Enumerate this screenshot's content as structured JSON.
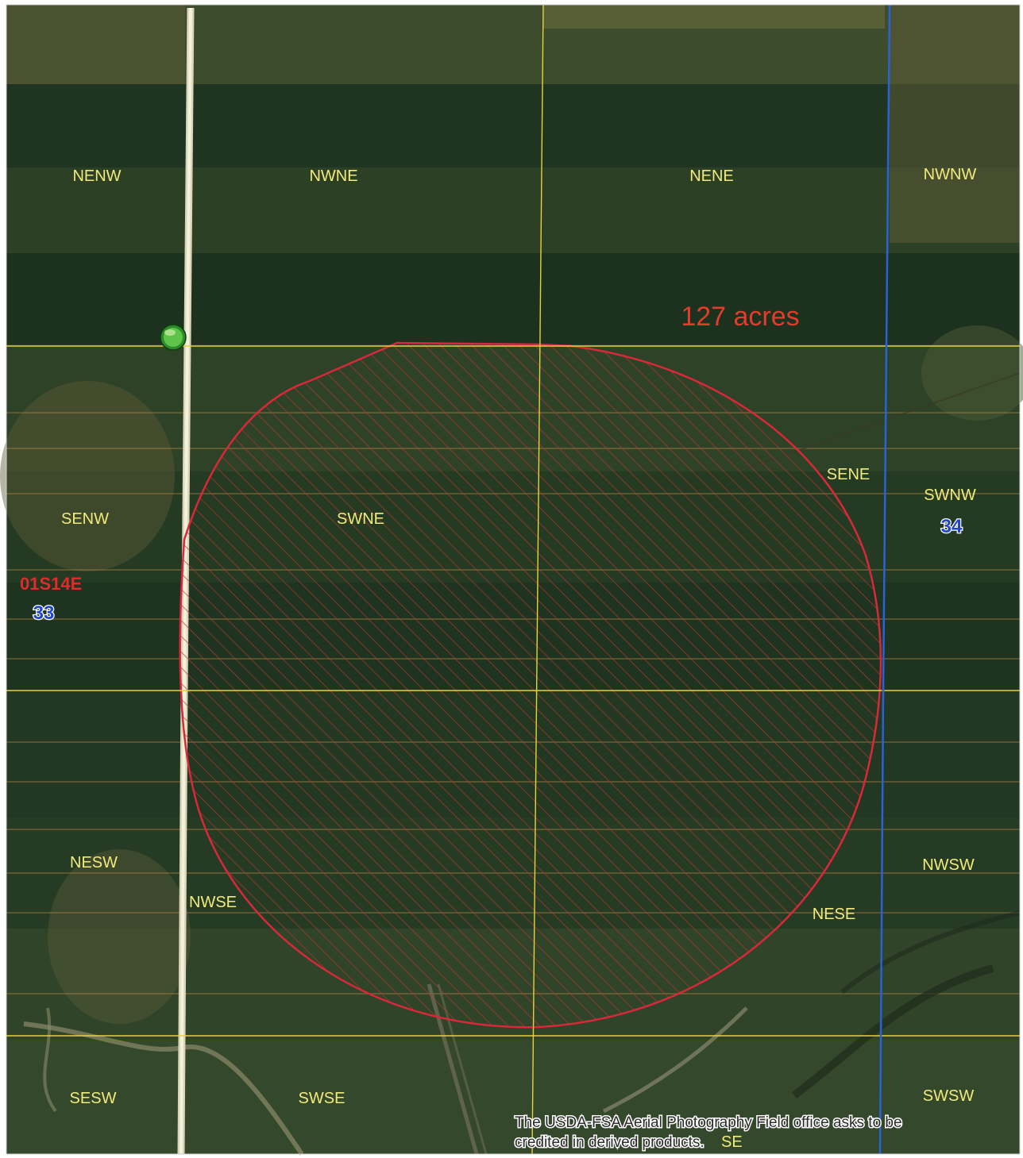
{
  "map": {
    "quarter_labels": {
      "nenw": "NENW",
      "nwne": "NWNE",
      "nene": "NENE",
      "nwnw": "NWNW",
      "senw": "SENW",
      "swne": "SWNE",
      "sene": "SENE",
      "swnw": "SWNW",
      "nesw": "NESW",
      "nwse": "NWSE",
      "nese": "NESE",
      "nwsw": "NWSW",
      "sesw": "SESW",
      "swse": "SWSE",
      "swsw": "SWSW",
      "sese_partial": "SE"
    },
    "township_range": "01S14E",
    "section_left": "33",
    "section_right": "34",
    "field": {
      "area_label": "127 acres"
    },
    "credit_line1": "The USDA-FSA Aerial Photography Field office asks to be",
    "credit_line2": "credited in derived products."
  },
  "colors": {
    "field_outline": "#d8283a",
    "hatch": "#b8372c",
    "grid_line": "#e6d23c",
    "section_line": "#2a62d8",
    "label_yellow": "#f2ea7a",
    "label_red": "#e22a2a",
    "section_number_blue": "#1f47c8",
    "terrain_dark": "#1f3a1f",
    "terrain_mid": "#3b4f2a"
  },
  "icons": {
    "marker": "green-point-marker"
  }
}
